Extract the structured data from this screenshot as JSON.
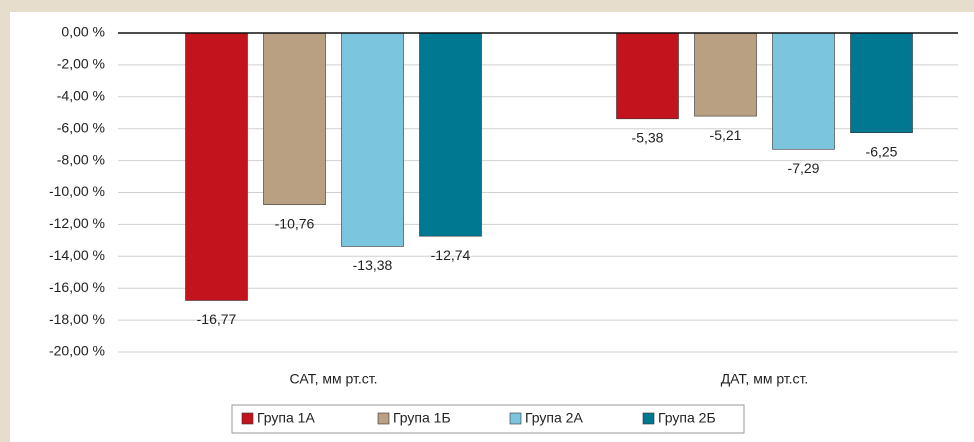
{
  "chart_data": {
    "type": "bar",
    "categories": [
      "САТ, мм рт.ст.",
      "ДАТ, мм рт.ст."
    ],
    "series": [
      {
        "name": "Група 1А",
        "color": "#c3141d",
        "values": [
          -16.77,
          -5.38
        ],
        "value_labels": [
          "-16,77",
          "-5,38"
        ]
      },
      {
        "name": "Група 1Б",
        "color": "#b9a083",
        "values": [
          -10.76,
          -5.21
        ],
        "value_labels": [
          "-10,76",
          "-5,21"
        ]
      },
      {
        "name": "Група 2А",
        "color": "#7cc5de",
        "values": [
          -13.38,
          -7.29
        ],
        "value_labels": [
          "-13,38",
          "-7,29"
        ]
      },
      {
        "name": "Група 2Б",
        "color": "#007891",
        "values": [
          -12.74,
          -6.25
        ],
        "value_labels": [
          "-12,74",
          "-6,25"
        ]
      }
    ],
    "ylim": [
      -20,
      0
    ],
    "yticks": [
      {
        "value": 0,
        "label": "0,00 %"
      },
      {
        "value": -2,
        "label": "-2,00 %"
      },
      {
        "value": -4,
        "label": "-4,00 %"
      },
      {
        "value": -6,
        "label": "-6,00 %"
      },
      {
        "value": -8,
        "label": "-8,00 %"
      },
      {
        "value": -10,
        "label": "-10,00 %"
      },
      {
        "value": -12,
        "label": "-12,00 %"
      },
      {
        "value": -14,
        "label": "-14,00 %"
      },
      {
        "value": -16,
        "label": "-16,00 %"
      },
      {
        "value": -18,
        "label": "-18,00 %"
      },
      {
        "value": -20,
        "label": "-20,00 %"
      }
    ],
    "grid": true,
    "legend": "bottom"
  }
}
